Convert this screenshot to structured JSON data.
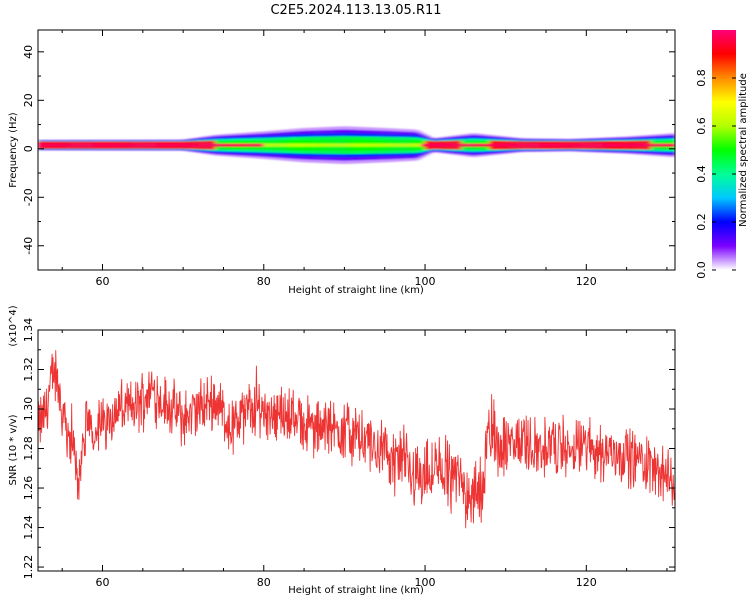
{
  "title": "C2E5.2024.113.13.05.R11",
  "chart_data": [
    {
      "type": "heatmap",
      "xlabel": "Height of straight line (km)",
      "ylabel": "Frequency (Hz)",
      "xlim": [
        52,
        131
      ],
      "ylim": [
        -50,
        49
      ],
      "xticks": [
        "60",
        "80",
        "100",
        "120"
      ],
      "yticks": [
        "40",
        "20",
        "0",
        "-20",
        "-40"
      ],
      "colorbar": {
        "label": "Normalized spectral amplitude",
        "range": [
          0,
          1
        ],
        "ticks": [
          "0.0",
          "0.2",
          "0.4",
          "0.6",
          "0.8"
        ],
        "colors": [
          "#ffffff",
          "#7a00ff",
          "#0000ff",
          "#00c8ff",
          "#00ff96",
          "#00ff00",
          "#b4ff00",
          "#ffff00",
          "#ff8c00",
          "#ff0000",
          "#ff0078"
        ]
      },
      "band": {
        "center_freq_hz": 1.5,
        "core_halfwidth_hz": 1.5,
        "spread_profile": [
          {
            "height_km": 52,
            "halfwidth_hz": 0.5
          },
          {
            "height_km": 70,
            "halfwidth_hz": 0.6
          },
          {
            "height_km": 74,
            "halfwidth_hz": 2.0
          },
          {
            "height_km": 80,
            "halfwidth_hz": 3.0
          },
          {
            "height_km": 85,
            "halfwidth_hz": 4.0
          },
          {
            "height_km": 90,
            "halfwidth_hz": 4.5
          },
          {
            "height_km": 95,
            "halfwidth_hz": 4.0
          },
          {
            "height_km": 99,
            "halfwidth_hz": 3.5
          },
          {
            "height_km": 101,
            "halfwidth_hz": 1.0
          },
          {
            "height_km": 106,
            "halfwidth_hz": 2.5
          },
          {
            "height_km": 112,
            "halfwidth_hz": 1.0
          },
          {
            "height_km": 118,
            "halfwidth_hz": 0.8
          },
          {
            "height_km": 125,
            "halfwidth_hz": 1.5
          },
          {
            "height_km": 131,
            "halfwidth_hz": 2.5
          }
        ]
      }
    },
    {
      "type": "line",
      "xlabel": "Height of straight line (km)",
      "ylabel": "SNR (10 * v/v)",
      "y_multiplier": "(x10^4)",
      "xlim": [
        52,
        131
      ],
      "ylim": [
        1.218,
        1.34
      ],
      "xticks": [
        "60",
        "80",
        "100",
        "120"
      ],
      "yticks": [
        "1.22",
        "1.24",
        "1.26",
        "1.28",
        "1.30",
        "1.32",
        "1.34"
      ],
      "color": "#ee3333",
      "series": [
        {
          "x": [
            52,
            53,
            54,
            55,
            56,
            57,
            58,
            60,
            62,
            64,
            66,
            68,
            70,
            72,
            74,
            76,
            78,
            80,
            82,
            84,
            86,
            88,
            90,
            92,
            94,
            96,
            98,
            100,
            102,
            104,
            106,
            107,
            108,
            110,
            112,
            114,
            116,
            118,
            120,
            122,
            124,
            126,
            128,
            130,
            131
          ],
          "y": [
            1.29,
            1.3,
            1.32,
            1.3,
            1.285,
            1.265,
            1.29,
            1.292,
            1.3,
            1.3,
            1.31,
            1.302,
            1.295,
            1.3,
            1.305,
            1.29,
            1.3,
            1.3,
            1.298,
            1.296,
            1.29,
            1.29,
            1.29,
            1.285,
            1.28,
            1.275,
            1.27,
            1.265,
            1.27,
            1.265,
            1.255,
            1.26,
            1.29,
            1.28,
            1.285,
            1.28,
            1.282,
            1.278,
            1.282,
            1.278,
            1.278,
            1.275,
            1.272,
            1.265,
            1.262
          ]
        }
      ]
    }
  ]
}
